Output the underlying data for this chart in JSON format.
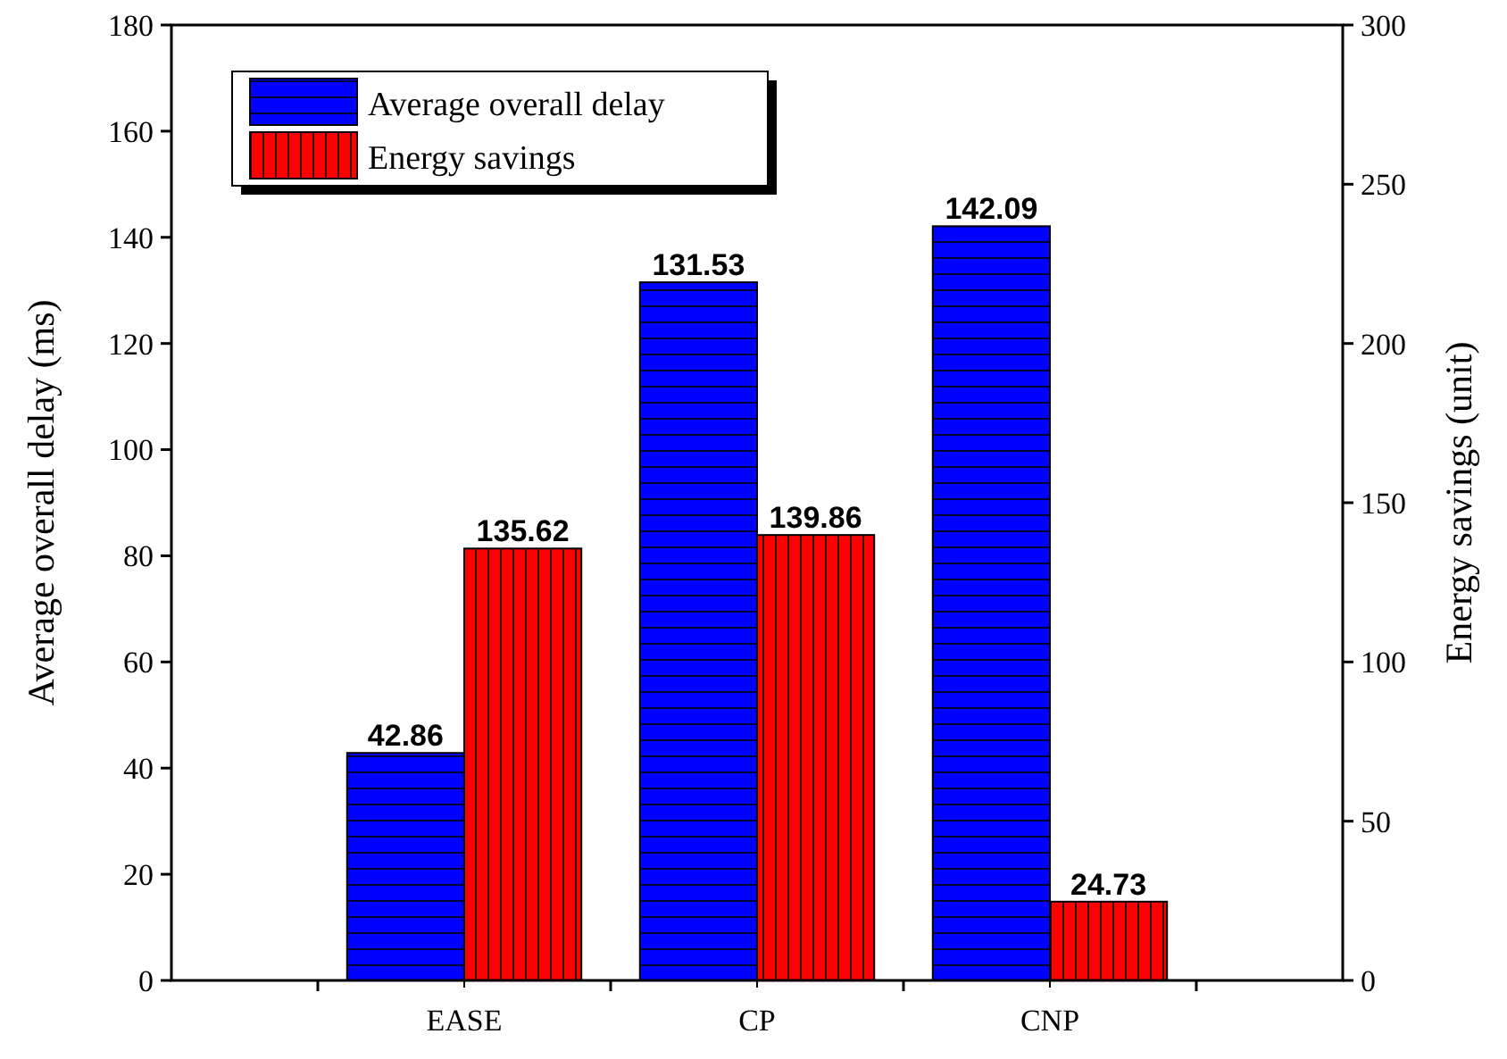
{
  "chart_data": {
    "type": "bar",
    "ylabel": "Average overall delay (ms)",
    "y2label": "Energy savings (unit)",
    "categories": [
      "EASE",
      "CP",
      "CNP"
    ],
    "series": [
      {
        "name": "Average overall delay",
        "color": "#0000ff",
        "values": [
          42.86,
          131.53,
          142.09
        ]
      },
      {
        "name": "Energy savings",
        "color": "#ff0000",
        "values": [
          135.62,
          139.86,
          24.73
        ],
        "axis": "y2"
      }
    ],
    "ylim": [
      0,
      180
    ],
    "yticks": [
      0,
      20,
      40,
      60,
      80,
      100,
      120,
      140,
      160,
      180
    ],
    "y2lim": [
      0,
      300
    ],
    "y2ticks": [
      0,
      50,
      100,
      150,
      200,
      250,
      300
    ],
    "data_labels": true,
    "legend": "top left",
    "grid": false
  }
}
